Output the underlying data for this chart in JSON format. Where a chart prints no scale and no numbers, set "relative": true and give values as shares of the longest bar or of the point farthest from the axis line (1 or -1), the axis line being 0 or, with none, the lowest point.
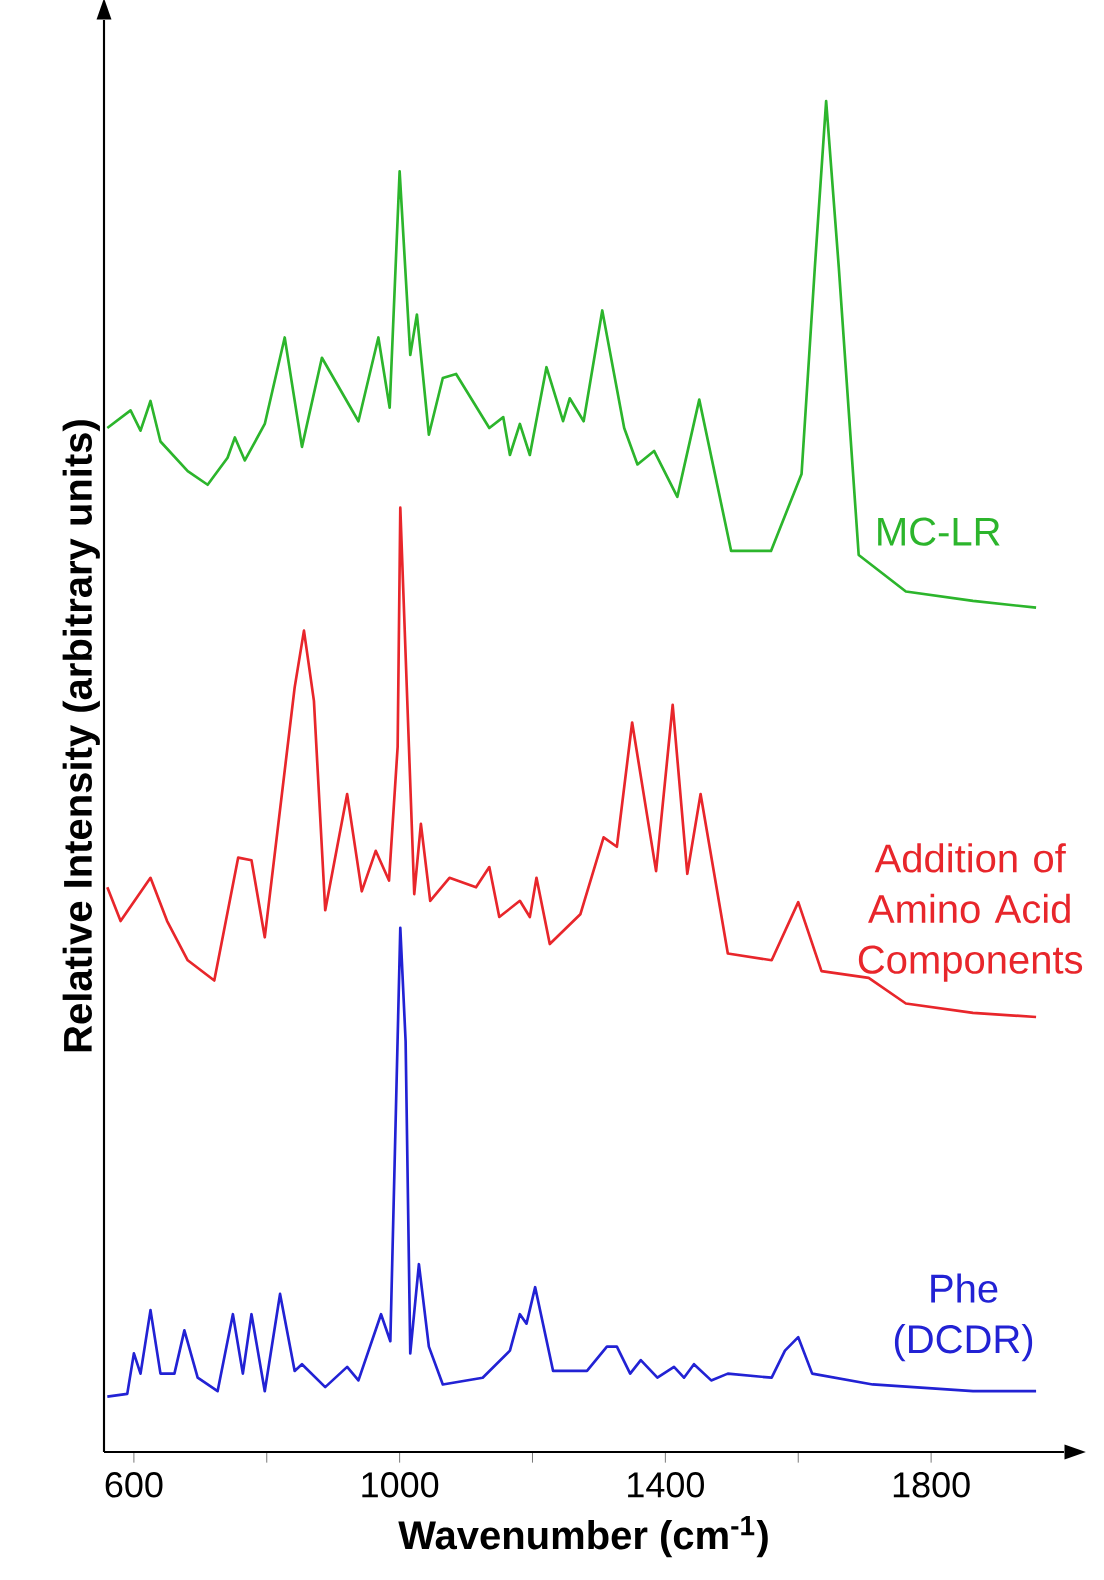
{
  "chart_data": {
    "type": "line",
    "relative": true,
    "xlabel": "Wavenumber (cm$^{-1}$)",
    "ylabel": "Relative Intensity (arbitrary units)",
    "xlim": [
      555,
      2000
    ],
    "xticks": [
      600,
      {
        "value": 800,
        "label": null
      },
      1000,
      {
        "value": 1200,
        "label": null
      },
      1400,
      {
        "value": 1600,
        "label": null
      },
      1800
    ],
    "series": [
      {
        "name": "MC-LR",
        "color": "#2cb52c",
        "x": [
          560,
          595,
          610,
          625,
          640,
          681,
          711,
          741,
          752,
          767,
          797,
          827,
          853,
          883,
          938,
          968,
          985,
          1000,
          1016,
          1026,
          1044,
          1065,
          1085,
          1135,
          1156,
          1166,
          1181,
          1196,
          1221,
          1246,
          1256,
          1277,
          1305,
          1338,
          1358,
          1383,
          1418,
          1451,
          1499,
          1559,
          1605,
          1625,
          1642,
          1661,
          1691,
          1762,
          1863,
          1958
        ],
        "values": [
          0.758,
          0.771,
          0.756,
          0.778,
          0.748,
          0.726,
          0.716,
          0.736,
          0.751,
          0.734,
          0.761,
          0.825,
          0.744,
          0.81,
          0.763,
          0.825,
          0.773,
          0.948,
          0.812,
          0.842,
          0.753,
          0.795,
          0.798,
          0.758,
          0.766,
          0.738,
          0.761,
          0.738,
          0.803,
          0.763,
          0.78,
          0.763,
          0.845,
          0.758,
          0.731,
          0.741,
          0.707,
          0.779,
          0.667,
          0.667,
          0.724,
          0.877,
          1.0,
          0.877,
          0.664,
          0.637,
          0.63,
          0.625
        ]
      },
      {
        "name": "Addition of Amino Acid Components",
        "color": "#e8262b",
        "x": [
          560,
          580,
          625,
          650,
          681,
          721,
          757,
          777,
          797,
          842,
          856,
          871,
          888,
          921,
          943,
          964,
          984,
          997,
          1001,
          1014,
          1022,
          1032,
          1046,
          1075,
          1115,
          1135,
          1150,
          1181,
          1196,
          1206,
          1226,
          1272,
          1307,
          1327,
          1350,
          1386,
          1411,
          1433,
          1453,
          1494,
          1560,
          1600,
          1635,
          1706,
          1762,
          1863,
          1958
        ],
        "values": [
          0.418,
          0.393,
          0.425,
          0.393,
          0.364,
          0.349,
          0.44,
          0.438,
          0.381,
          0.566,
          0.608,
          0.556,
          0.401,
          0.487,
          0.415,
          0.445,
          0.423,
          0.522,
          0.699,
          0.522,
          0.413,
          0.465,
          0.408,
          0.425,
          0.418,
          0.433,
          0.396,
          0.408,
          0.396,
          0.425,
          0.376,
          0.398,
          0.455,
          0.448,
          0.54,
          0.43,
          0.553,
          0.428,
          0.487,
          0.369,
          0.364,
          0.407,
          0.356,
          0.351,
          0.332,
          0.325,
          0.322
        ]
      },
      {
        "name": "Phe (DCDR)",
        "color": "#2222d4",
        "x": [
          560,
          590,
          600,
          610,
          625,
          640,
          661,
          676,
          696,
          726,
          749,
          764,
          777,
          797,
          820,
          842,
          853,
          888,
          921,
          938,
          972,
          986,
          1001,
          1009,
          1016,
          1029,
          1044,
          1065,
          1125,
          1166,
          1181,
          1191,
          1204,
          1231,
          1282,
          1312,
          1327,
          1347,
          1363,
          1388,
          1413,
          1428,
          1443,
          1469,
          1494,
          1560,
          1580,
          1600,
          1621,
          1712,
          1863,
          1958
        ],
        "values": [
          0.041,
          0.043,
          0.073,
          0.058,
          0.105,
          0.058,
          0.058,
          0.09,
          0.055,
          0.045,
          0.102,
          0.058,
          0.102,
          0.045,
          0.117,
          0.06,
          0.065,
          0.048,
          0.063,
          0.053,
          0.102,
          0.082,
          0.388,
          0.304,
          0.073,
          0.139,
          0.078,
          0.05,
          0.055,
          0.075,
          0.102,
          0.095,
          0.122,
          0.06,
          0.06,
          0.078,
          0.078,
          0.058,
          0.068,
          0.055,
          0.063,
          0.055,
          0.065,
          0.053,
          0.058,
          0.055,
          0.075,
          0.085,
          0.058,
          0.05,
          0.045,
          0.045
        ]
      }
    ]
  }
}
